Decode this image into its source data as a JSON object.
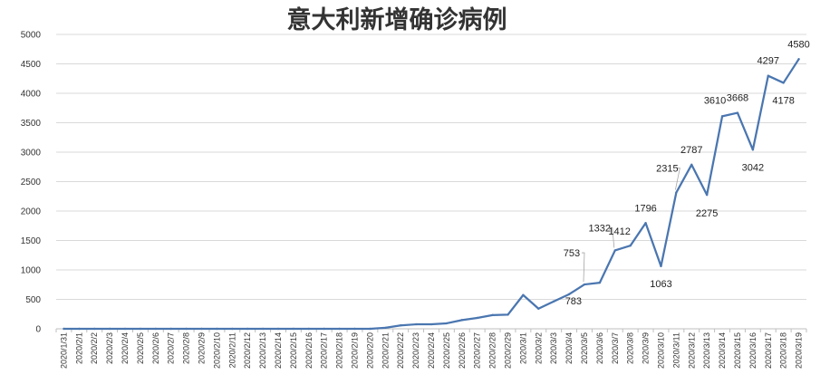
{
  "chart_data": {
    "type": "line",
    "title": "意大利新增确诊病例",
    "xlabel": "",
    "ylabel": "",
    "ylim": [
      0,
      5000
    ],
    "yticks": [
      0,
      500,
      1000,
      1500,
      2000,
      2500,
      3000,
      3500,
      4000,
      4500,
      5000
    ],
    "grid": true,
    "legend": "none",
    "colors": {
      "series": "#4a76b0"
    },
    "categories": [
      "2020/1/31",
      "2020/2/1",
      "2020/2/2",
      "2020/2/3",
      "2020/2/4",
      "2020/2/5",
      "2020/2/6",
      "2020/2/7",
      "2020/2/8",
      "2020/2/9",
      "2020/2/10",
      "2020/2/11",
      "2020/2/12",
      "2020/2/13",
      "2020/2/14",
      "2020/2/15",
      "2020/2/16",
      "2020/2/17",
      "2020/2/18",
      "2020/2/19",
      "2020/2/20",
      "2020/2/21",
      "2020/2/22",
      "2020/2/23",
      "2020/2/24",
      "2020/2/25",
      "2020/2/26",
      "2020/2/27",
      "2020/2/28",
      "2020/2/29",
      "2020/3/1",
      "2020/3/2",
      "2020/3/3",
      "2020/3/4",
      "2020/3/5",
      "2020/3/6",
      "2020/3/7",
      "2020/3/8",
      "2020/3/9",
      "2020/3/10",
      "2020/3/11",
      "2020/3/12",
      "2020/3/13",
      "2020/3/14",
      "2020/3/15",
      "2020/3/16",
      "2020/3/17",
      "2020/3/18",
      "2020/3/19"
    ],
    "series": [
      {
        "values": [
          0,
          0,
          0,
          0,
          0,
          0,
          0,
          0,
          0,
          0,
          0,
          0,
          0,
          0,
          0,
          0,
          0,
          0,
          0,
          0,
          0,
          17,
          58,
          76,
          76,
          93,
          148,
          185,
          233,
          240,
          573,
          342,
          466,
          587,
          753,
          783,
          1332,
          1412,
          1796,
          1063,
          2315,
          2787,
          2275,
          3610,
          3668,
          3042,
          4297,
          4178,
          4580
        ]
      }
    ],
    "data_labels": [
      {
        "category": "2020/3/5",
        "value": 753,
        "text": "753"
      },
      {
        "category": "2020/3/6",
        "value": 783,
        "text": "783"
      },
      {
        "category": "2020/3/7",
        "value": 1332,
        "text": "1332"
      },
      {
        "category": "2020/3/8",
        "value": 1412,
        "text": "1412"
      },
      {
        "category": "2020/3/9",
        "value": 1796,
        "text": "1796"
      },
      {
        "category": "2020/3/10",
        "value": 1063,
        "text": "1063"
      },
      {
        "category": "2020/3/11",
        "value": 2315,
        "text": "2315"
      },
      {
        "category": "2020/3/12",
        "value": 2787,
        "text": "2787"
      },
      {
        "category": "2020/3/13",
        "value": 2275,
        "text": "2275"
      },
      {
        "category": "2020/3/14",
        "value": 3610,
        "text": "3610"
      },
      {
        "category": "2020/3/15",
        "value": 3668,
        "text": "3668"
      },
      {
        "category": "2020/3/16",
        "value": 3042,
        "text": "3042"
      },
      {
        "category": "2020/3/17",
        "value": 4297,
        "text": "4297"
      },
      {
        "category": "2020/3/18",
        "value": 4178,
        "text": "4178"
      },
      {
        "category": "2020/3/19",
        "value": 4580,
        "text": "4580"
      }
    ]
  }
}
